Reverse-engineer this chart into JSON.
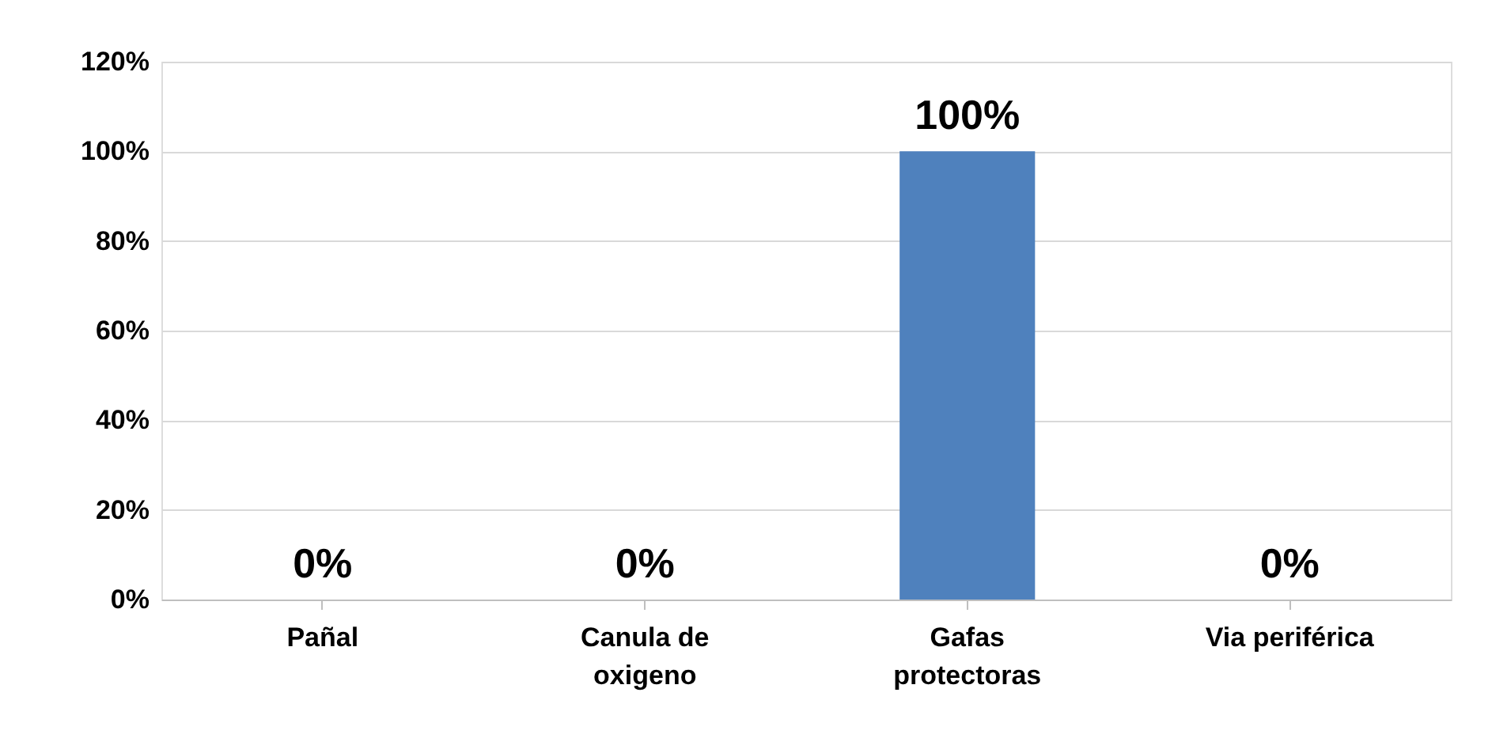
{
  "chart_data": {
    "type": "bar",
    "categories": [
      "Pañal",
      "Canula de oxigeno",
      "Gafas protectoras",
      "Via periférica"
    ],
    "series": [
      {
        "color": "#4f81bd",
        "values": [
          0,
          0,
          100,
          0
        ]
      }
    ],
    "value_labels": [
      "0%",
      "0%",
      "100%",
      "0%"
    ],
    "ylim": [
      0,
      120
    ],
    "yticks": [
      {
        "value": 0,
        "label": "0%"
      },
      {
        "value": 20,
        "label": "20%"
      },
      {
        "value": 40,
        "label": "40%"
      },
      {
        "value": 60,
        "label": "60%"
      },
      {
        "value": 80,
        "label": "80%"
      },
      {
        "value": 100,
        "label": "100%"
      },
      {
        "value": 120,
        "label": "120%"
      }
    ],
    "grid": "y"
  }
}
